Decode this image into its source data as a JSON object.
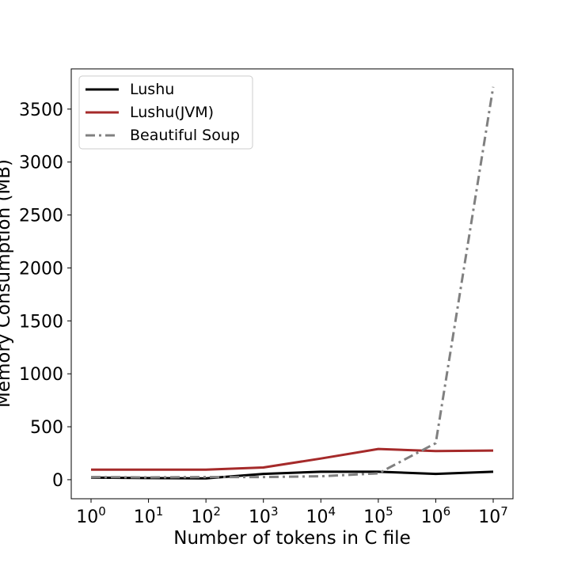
{
  "chart_data": {
    "type": "line",
    "title": "",
    "xlabel": "Number of tokens in C file",
    "ylabel": "Memory Consumption (MB)",
    "x_scale": "log",
    "x": [
      1,
      10,
      100,
      1000,
      10000,
      100000,
      1000000,
      10000000
    ],
    "x_tick_bases": [
      "10",
      "10",
      "10",
      "10",
      "10",
      "10",
      "10",
      "10"
    ],
    "x_tick_exponents": [
      "0",
      "1",
      "2",
      "3",
      "4",
      "5",
      "6",
      "7"
    ],
    "y_ticks": [
      0,
      500,
      1000,
      1500,
      2000,
      2500,
      3000,
      3500
    ],
    "y_tick_labels": [
      "0",
      "500",
      "1000",
      "1500",
      "2000",
      "2500",
      "3000",
      "3500"
    ],
    "ylim": [
      -180,
      3880
    ],
    "grid": false,
    "legend_position": "top-left",
    "series": [
      {
        "name": "Lushu",
        "color": "#000000",
        "style": "solid",
        "values": [
          20,
          15,
          12,
          55,
          75,
          75,
          55,
          75
        ]
      },
      {
        "name": "Lushu(JVM)",
        "color": "#a52a2a",
        "style": "solid",
        "values": [
          95,
          95,
          95,
          115,
          200,
          290,
          270,
          275
        ]
      },
      {
        "name": "Beautiful Soup",
        "color": "#808080",
        "style": "dashdot",
        "values": [
          25,
          22,
          25,
          25,
          32,
          60,
          345,
          3710
        ]
      }
    ]
  }
}
